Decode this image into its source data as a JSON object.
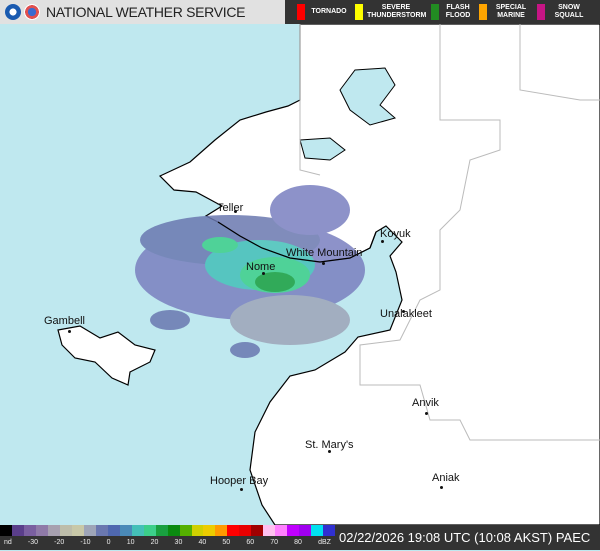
{
  "header": {
    "title": "NATIONAL WEATHER SERVICE",
    "warnings": [
      {
        "label": "TORNADO",
        "color": "#ff0000"
      },
      {
        "label": "SEVERE THUNDERSTORM",
        "color": "#ffff00"
      },
      {
        "label": "FLASH FLOOD",
        "color": "#228b22"
      },
      {
        "label": "SPECIAL MARINE",
        "color": "#ffa500"
      },
      {
        "label": "SNOW SQUALL",
        "color": "#c71585"
      }
    ]
  },
  "map": {
    "water_color": "#bfe8ef",
    "land_color": "#ffffff",
    "places": [
      "Teller",
      "Koyuk",
      "White Mountain",
      "Nome",
      "Unalakleet",
      "Gambell",
      "Anvik",
      "St. Mary's",
      "Hooper Bay",
      "Aniak"
    ]
  },
  "legend": {
    "ticks": [
      "nd",
      "-30",
      "-20",
      "-10",
      "0",
      "10",
      "20",
      "30",
      "40",
      "50",
      "60",
      "70",
      "80",
      "dBZ"
    ],
    "colors": [
      "#000000",
      "#5a3e8a",
      "#7a5fa0",
      "#8f7aa8",
      "#a7a1b0",
      "#bdbdaa",
      "#c8c8a8",
      "#9ea5b8",
      "#6a78b0",
      "#4f68b0",
      "#4a8ab8",
      "#44c0b8",
      "#3ccf8a",
      "#19a040",
      "#0a8a10",
      "#55b000",
      "#d0d000",
      "#eccc00",
      "#ff9a00",
      "#ff0000",
      "#e80000",
      "#a00000",
      "#ffc0f0",
      "#ff80ff",
      "#c000ff",
      "#a000f0",
      "#00e0f0",
      "#3030d0"
    ]
  },
  "timestamp": "02/22/2026 19:08 UTC (10:08 AKST)",
  "station": "PAEC"
}
